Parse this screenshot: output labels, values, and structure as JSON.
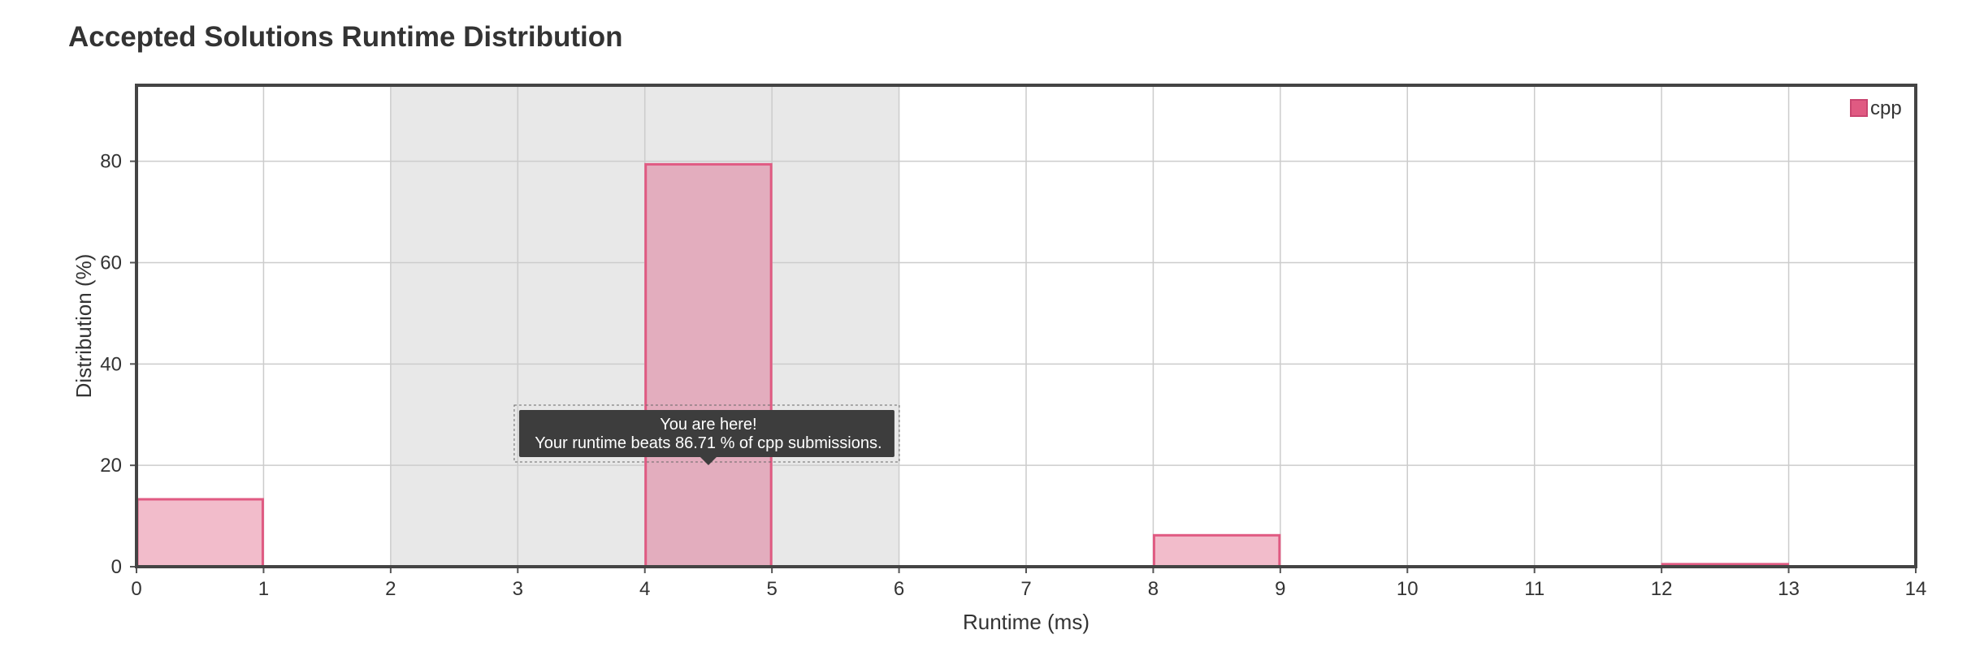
{
  "page": {
    "title": "Accepted Solutions Runtime Distribution"
  },
  "chart_data": {
    "type": "bar",
    "title": "Accepted Solutions Runtime Distribution",
    "xlabel": "Runtime (ms)",
    "ylabel": "Distribution (%)",
    "xlim": [
      0,
      14
    ],
    "ylim": [
      0,
      95
    ],
    "x_ticks": [
      0,
      1,
      2,
      3,
      4,
      5,
      6,
      7,
      8,
      9,
      10,
      11,
      12,
      13,
      14
    ],
    "y_ticks": [
      0,
      20,
      40,
      60,
      80
    ],
    "grid": true,
    "legend": {
      "position": "top-right",
      "entries": [
        "cpp"
      ]
    },
    "highlight_range": [
      2,
      6
    ],
    "series": [
      {
        "name": "cpp",
        "color": "#e05a82",
        "bins": [
          {
            "x0": 0,
            "x1": 1,
            "value": 13.3
          },
          {
            "x0": 4,
            "x1": 5,
            "value": 79.4
          },
          {
            "x0": 8,
            "x1": 9,
            "value": 6.2
          },
          {
            "x0": 12,
            "x1": 13,
            "value": 0.5
          }
        ]
      }
    ],
    "highlighted_bin_index": 1,
    "tooltip": {
      "line1": "You are here!",
      "line2": "Your runtime beats 86.71 % of cpp submissions.",
      "anchor_x": 4.5
    }
  }
}
